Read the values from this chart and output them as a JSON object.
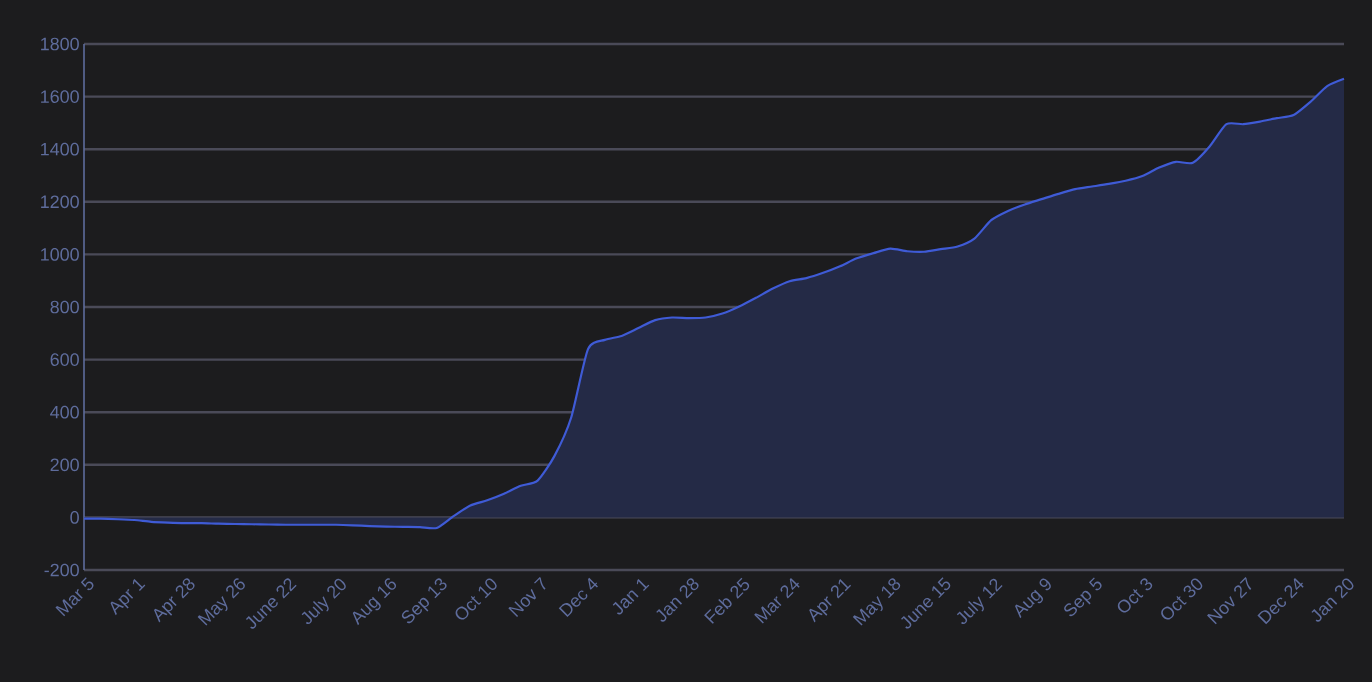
{
  "chart_data": {
    "type": "area",
    "color": "#3f5bd6",
    "categories": [
      "Mar 5",
      null,
      null,
      "Apr 1",
      null,
      null,
      "Apr 28",
      null,
      null,
      "May 26",
      null,
      null,
      "June 22",
      null,
      null,
      "July 20",
      null,
      null,
      "Aug 16",
      null,
      null,
      "Sep 13",
      null,
      null,
      "Oct 10",
      null,
      null,
      "Nov 7",
      null,
      null,
      "Dec 4",
      null,
      null,
      "Jan 1",
      null,
      null,
      "Jan 28",
      null,
      null,
      "Feb 25",
      null,
      null,
      "Mar 24",
      null,
      null,
      "Apr 21",
      null,
      null,
      "May 18",
      null,
      null,
      "June 15",
      null,
      null,
      "July 12",
      null,
      null,
      "Aug 9",
      null,
      null,
      "Sep 5",
      null,
      null,
      "Oct 3",
      null,
      null,
      "Oct 30",
      null,
      null,
      "Nov 27",
      null,
      null,
      "Dec 24",
      null,
      null,
      "Jan 20"
    ],
    "values": [
      -5,
      -5,
      -7,
      -10,
      -17,
      -20,
      -22,
      -22,
      -24,
      -25,
      -26,
      -27,
      -28,
      -28,
      -28,
      -28,
      -30,
      -33,
      -35,
      -36,
      -37,
      -40,
      5,
      45,
      65,
      90,
      120,
      140,
      233,
      380,
      640,
      675,
      690,
      720,
      750,
      760,
      758,
      760,
      775,
      802,
      835,
      870,
      898,
      910,
      930,
      955,
      985,
      1005,
      1022,
      1012,
      1010,
      1020,
      1030,
      1060,
      1130,
      1165,
      1190,
      1210,
      1230,
      1248,
      1258,
      1268,
      1280,
      1298,
      1330,
      1352,
      1348,
      1410,
      1495,
      1495,
      1505,
      1518,
      1530,
      1580,
      1640,
      1668
    ],
    "ylim": [
      -200,
      1800
    ],
    "yticks": [
      -200,
      0,
      200,
      400,
      600,
      800,
      1000,
      1200,
      1400,
      1600,
      1800
    ],
    "grid": "y"
  }
}
